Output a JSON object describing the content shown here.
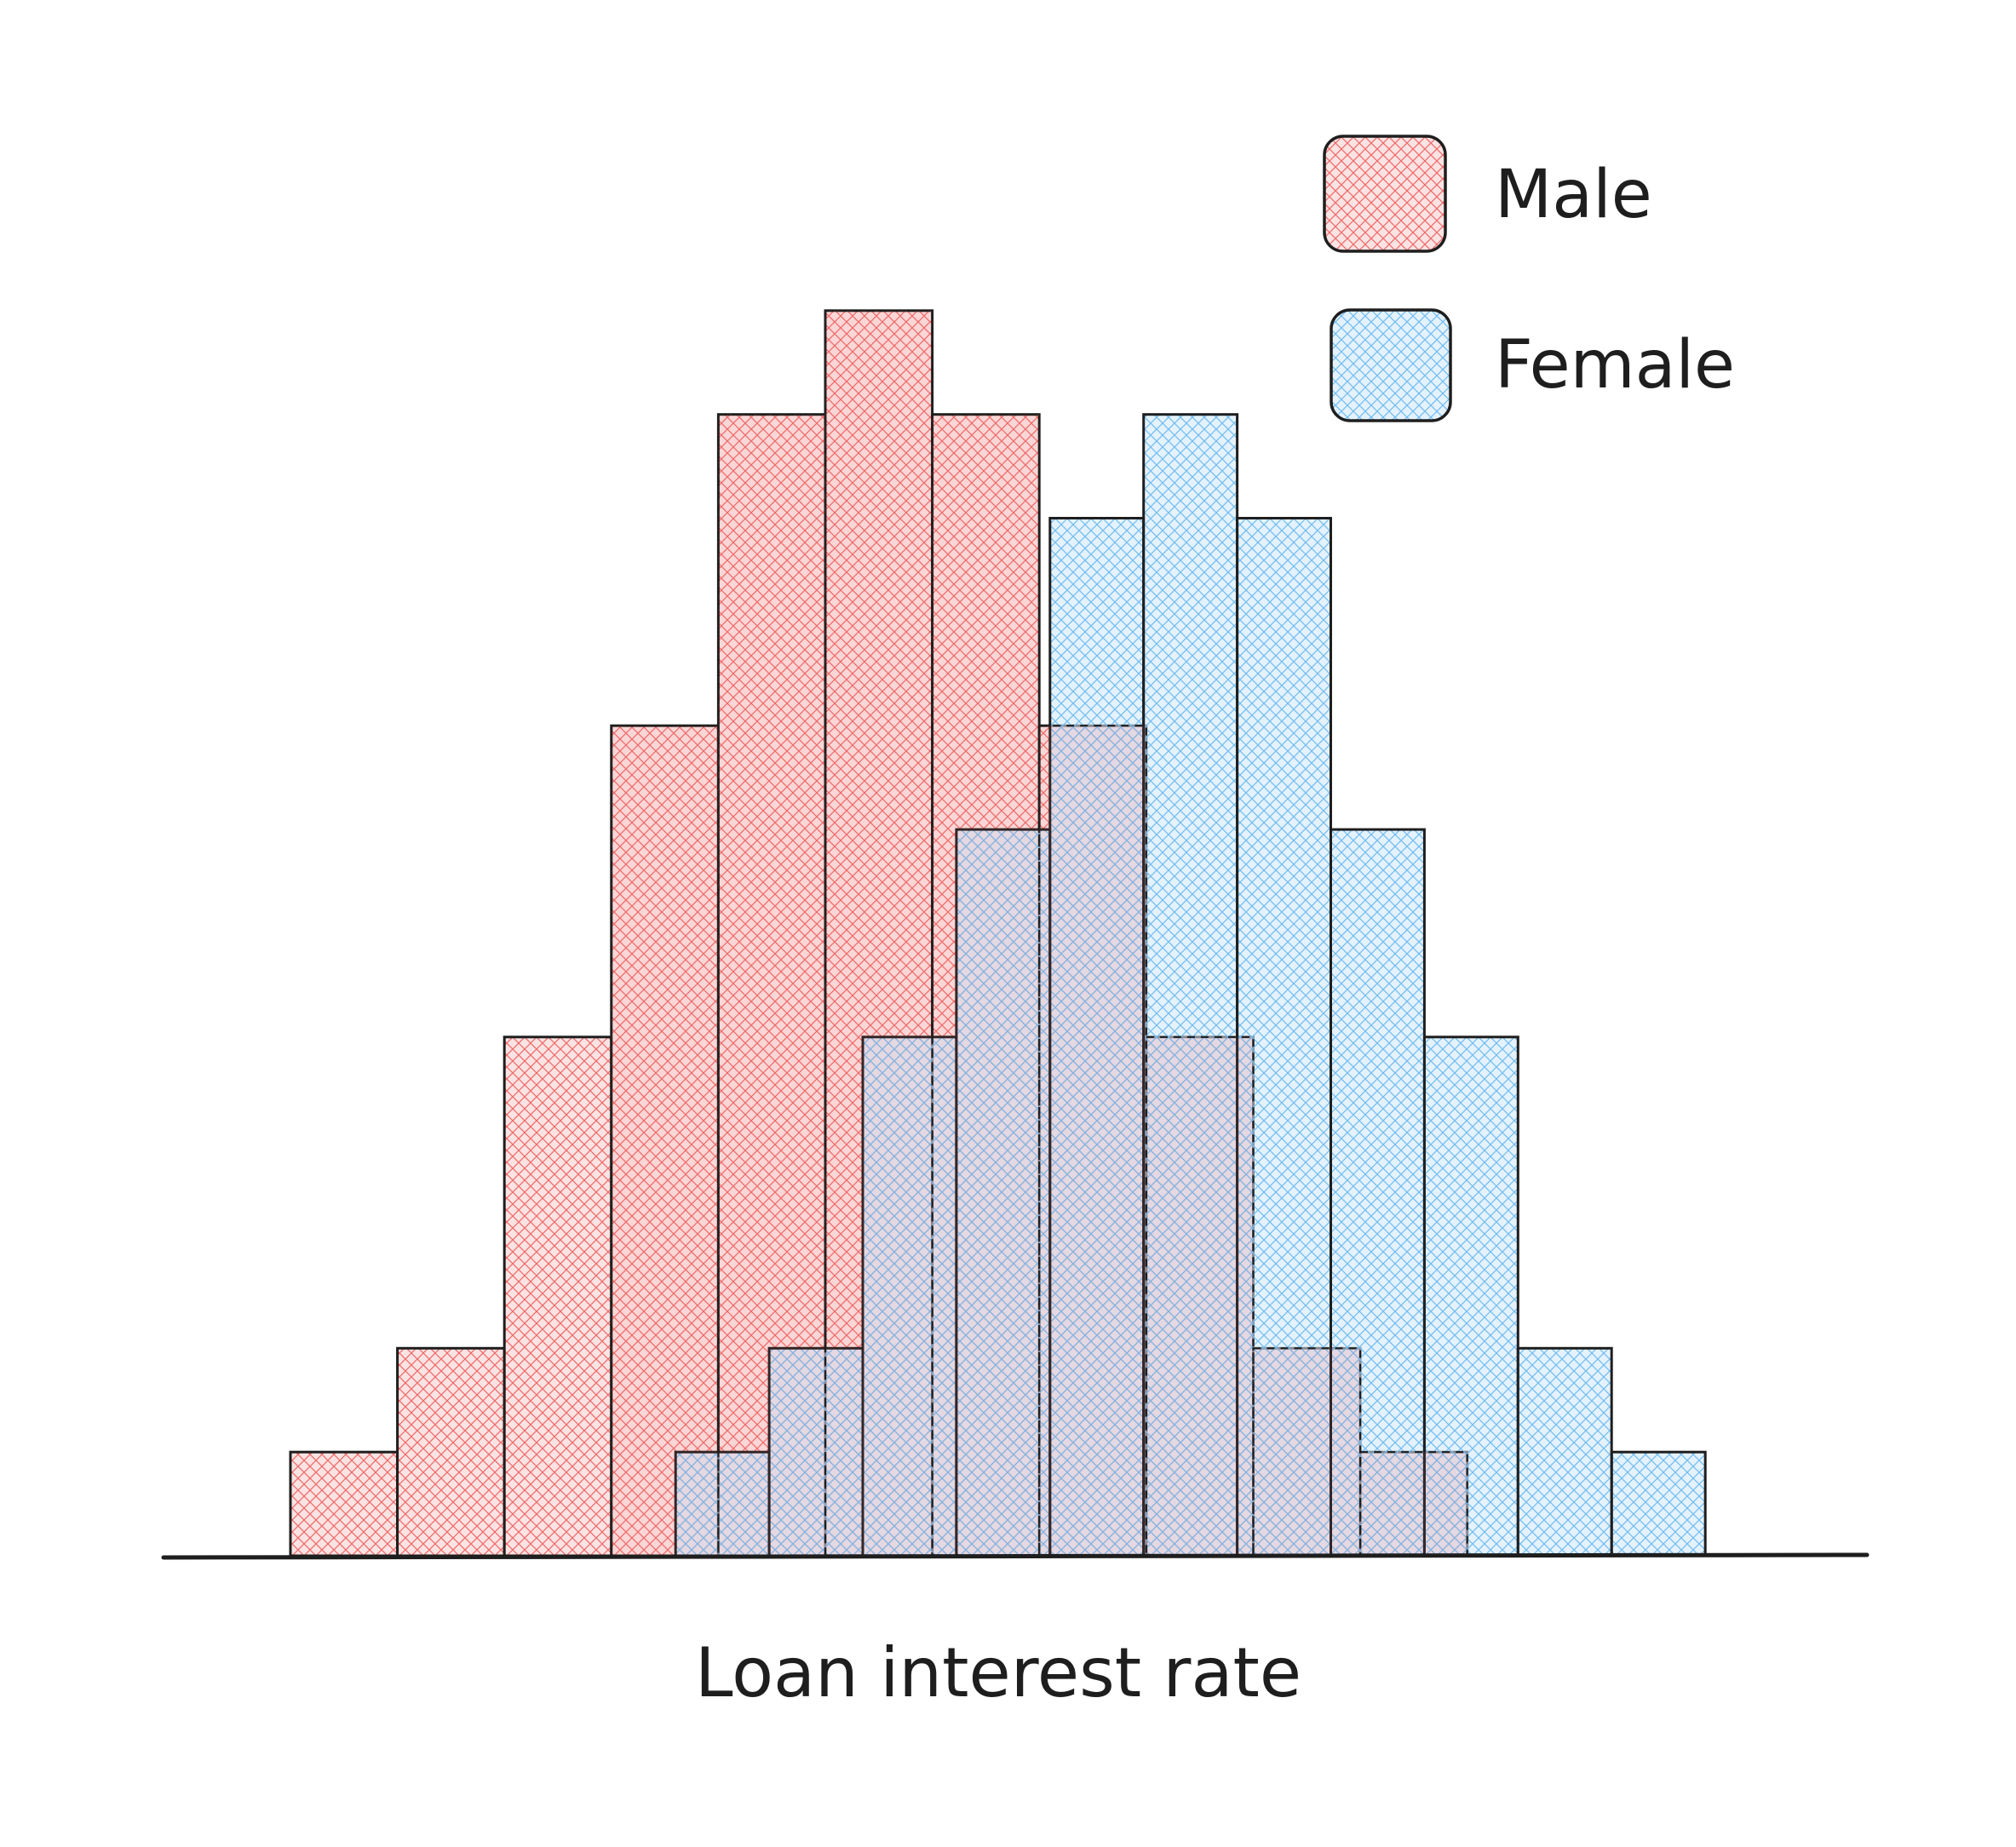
{
  "chart_data": {
    "type": "bar",
    "subtype": "overlapping-histogram",
    "xlabel": "Loan interest rate",
    "ylabel": "",
    "title": "",
    "y_axis_visible": false,
    "x_ticks_visible": false,
    "grid": false,
    "legend": {
      "position": "top-right",
      "entries": [
        "Male",
        "Female"
      ]
    },
    "series": [
      {
        "name": "Male",
        "color": "#f28b8b",
        "fill": "cross-hatch",
        "bins": [
          {
            "start": 0,
            "end": 1,
            "value": 1
          },
          {
            "start": 1,
            "end": 2,
            "value": 2
          },
          {
            "start": 2,
            "end": 3,
            "value": 5
          },
          {
            "start": 3,
            "end": 4,
            "value": 8
          },
          {
            "start": 4,
            "end": 5,
            "value": 11
          },
          {
            "start": 5,
            "end": 6,
            "value": 12
          },
          {
            "start": 6,
            "end": 7,
            "value": 11
          },
          {
            "start": 7,
            "end": 8,
            "value": 8
          },
          {
            "start": 8,
            "end": 9,
            "value": 5
          },
          {
            "start": 9,
            "end": 10,
            "value": 2
          },
          {
            "start": 10,
            "end": 11,
            "value": 1
          }
        ]
      },
      {
        "name": "Female",
        "color": "#9fd3f7",
        "fill": "cross-hatch",
        "bins": [
          {
            "start": 3.6,
            "end": 4.475,
            "value": 1
          },
          {
            "start": 4.475,
            "end": 5.35,
            "value": 2
          },
          {
            "start": 5.35,
            "end": 6.225,
            "value": 5
          },
          {
            "start": 6.225,
            "end": 7.1,
            "value": 7
          },
          {
            "start": 7.1,
            "end": 7.975,
            "value": 10
          },
          {
            "start": 7.975,
            "end": 8.85,
            "value": 11
          },
          {
            "start": 8.85,
            "end": 9.725,
            "value": 10
          },
          {
            "start": 9.725,
            "end": 10.6,
            "value": 7
          },
          {
            "start": 10.6,
            "end": 11.475,
            "value": 5
          },
          {
            "start": 11.475,
            "end": 12.35,
            "value": 2
          },
          {
            "start": 12.35,
            "end": 13.225,
            "value": 1
          }
        ]
      }
    ],
    "xlim": [
      -1.6,
      14.8
    ],
    "ylim": [
      0,
      13
    ]
  },
  "ui": {
    "stroke_color": "#1e1e1e",
    "hatch_male_color": "#f26d6d",
    "hatch_female_color": "#7cc1f0"
  }
}
